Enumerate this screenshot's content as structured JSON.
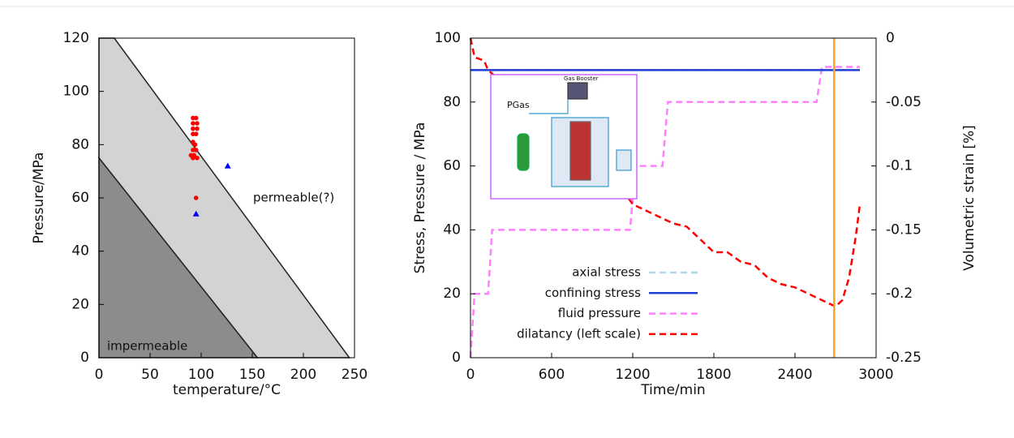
{
  "chart_data": [
    {
      "type": "scatter",
      "xlabel": "temperature/°C",
      "ylabel": "Pressure/MPa",
      "xlim": [
        0,
        250
      ],
      "ylim": [
        0,
        120
      ],
      "xticks": [
        0,
        50,
        100,
        150,
        200,
        250
      ],
      "yticks": [
        0,
        20,
        40,
        60,
        80,
        100,
        120
      ],
      "regions": [
        {
          "color": "#d3d3d3",
          "points": [
            [
              0,
              75
            ],
            [
              0,
              120
            ],
            [
              15,
              120
            ],
            [
              245,
              0
            ],
            [
              155,
              0
            ]
          ]
        },
        {
          "color": "#8c8c8c",
          "points": [
            [
              0,
              0
            ],
            [
              0,
              75
            ],
            [
              155,
              0
            ]
          ]
        }
      ],
      "annotations": [
        "impermeable",
        "permeable(?)"
      ],
      "series": [
        {
          "color": "#ff0000",
          "marker": "circle",
          "x": [
            92,
            95,
            92,
            96,
            92,
            96,
            92,
            95,
            92,
            94,
            92,
            95,
            90,
            93,
            92,
            96,
            95
          ],
          "y": [
            90,
            90,
            88,
            88,
            86,
            86,
            84,
            84,
            81,
            80,
            78,
            78,
            76,
            76,
            75,
            75,
            60
          ]
        },
        {
          "color": "#0000ff",
          "marker": "triangle",
          "x": [
            95,
            126
          ],
          "y": [
            54,
            72
          ]
        }
      ]
    },
    {
      "type": "line",
      "xlabel": "Time/min",
      "ylabel": "Stress, Pressure / MPa",
      "y2label": "Volumetric strain [%]",
      "xlim": [
        0,
        3000
      ],
      "ylim": [
        0,
        100
      ],
      "y2lim": [
        -0.25,
        0
      ],
      "xticks": [
        0,
        600,
        1200,
        1800,
        2400,
        3000
      ],
      "yticks": [
        0,
        20,
        40,
        60,
        80,
        100
      ],
      "y2ticks": [
        -0.25,
        -0.2,
        -0.15,
        -0.1,
        -0.05,
        0
      ],
      "vline": 2690,
      "vline_color": "#f5a623",
      "inset_labels": [
        "Gas Booster",
        "PGas"
      ],
      "series": [
        {
          "name": "axial stress",
          "color": "#add8e6",
          "dash": true,
          "x": [
            0,
            2880
          ],
          "values": [
            90,
            90
          ]
        },
        {
          "name": "confining stress",
          "color": "#1f3fd6",
          "dash": false,
          "x": [
            0,
            2880
          ],
          "values": [
            90,
            90
          ]
        },
        {
          "name": "fluid pressure",
          "color": "#ff80ff",
          "dash": true,
          "x": [
            0,
            30,
            130,
            160,
            1180,
            1220,
            1420,
            1460,
            2560,
            2600,
            2880
          ],
          "values": [
            0,
            20,
            20,
            40,
            40,
            60,
            60,
            80,
            80,
            91,
            91
          ]
        },
        {
          "name": "dilatancy (left scale)",
          "color": "#ff0000",
          "dash": true,
          "axis": "y2",
          "x": [
            0,
            30,
            100,
            130,
            400,
            800,
            1000,
            1200,
            1300,
            1400,
            1500,
            1600,
            1700,
            1800,
            1900,
            2000,
            2100,
            2200,
            2300,
            2400,
            2500,
            2600,
            2700,
            2750,
            2800,
            2850,
            2880
          ],
          "values": [
            0,
            -0.015,
            -0.0175,
            -0.025,
            -0.05,
            -0.08,
            -0.1,
            -0.13,
            -0.135,
            -0.14,
            -0.145,
            -0.1475,
            -0.1575,
            -0.1675,
            -0.1675,
            -0.175,
            -0.1775,
            -0.1875,
            -0.1925,
            -0.195,
            -0.2,
            -0.205,
            -0.21,
            -0.205,
            -0.1875,
            -0.155,
            -0.13
          ]
        }
      ]
    }
  ]
}
